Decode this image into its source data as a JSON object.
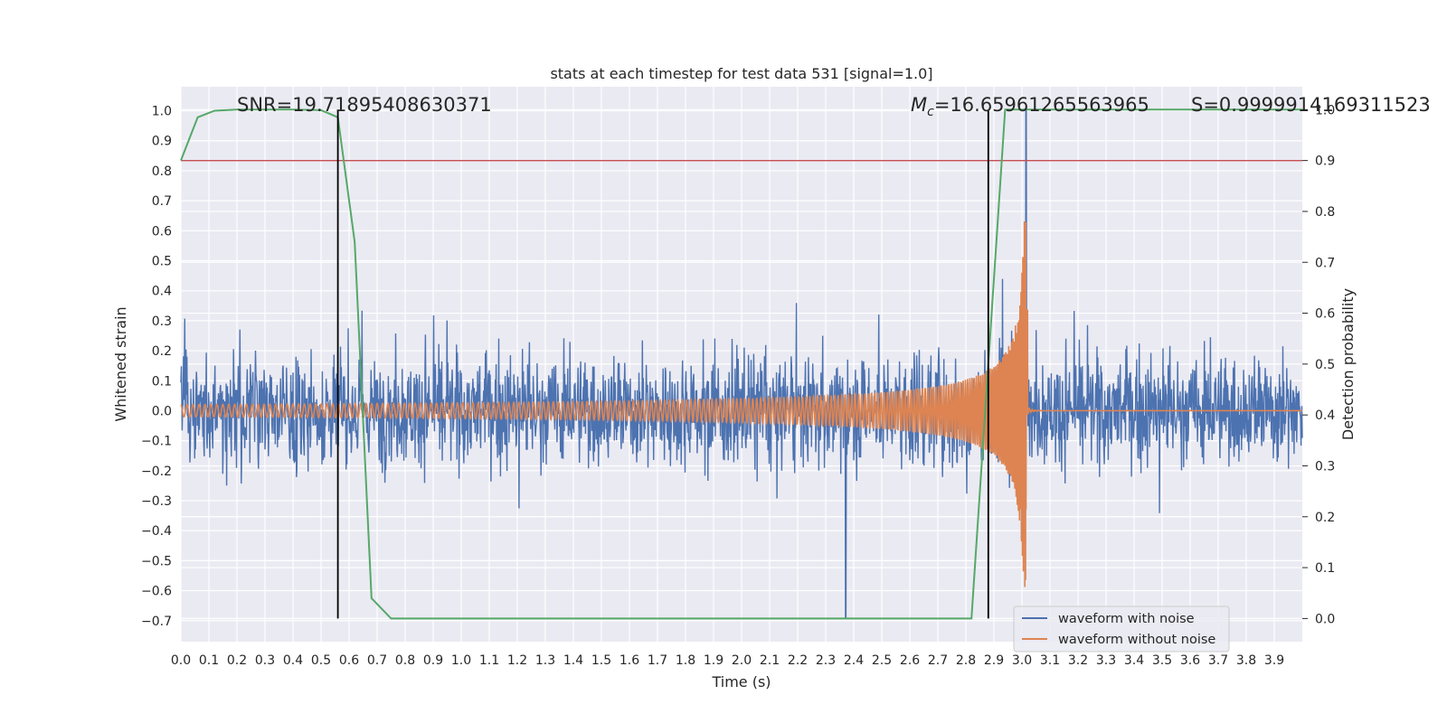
{
  "chart_data": {
    "type": "line",
    "title": "stats at each timestep for test data 531 [signal=1.0]",
    "xlabel": "Time (s)",
    "ylabel": "Whitened strain",
    "y2label": "Detection probability",
    "xlim": [
      0.0,
      4.0
    ],
    "ylim": [
      -0.77,
      1.08
    ],
    "y2lim": [
      -0.0455,
      1.045
    ],
    "x_ticks": [
      "0.0",
      "0.1",
      "0.2",
      "0.3",
      "0.4",
      "0.5",
      "0.6",
      "0.7",
      "0.8",
      "0.9",
      "1.0",
      "1.1",
      "1.2",
      "1.3",
      "1.4",
      "1.5",
      "1.6",
      "1.7",
      "1.8",
      "1.9",
      "2.0",
      "2.1",
      "2.2",
      "2.3",
      "2.4",
      "2.5",
      "2.6",
      "2.7",
      "2.8",
      "2.9",
      "3.0",
      "3.1",
      "3.2",
      "3.3",
      "3.4",
      "3.5",
      "3.6",
      "3.7",
      "3.8",
      "3.9"
    ],
    "y_ticks": [
      "−0.7",
      "−0.6",
      "−0.5",
      "−0.4",
      "−0.3",
      "−0.2",
      "−0.1",
      "0.0",
      "0.1",
      "0.2",
      "0.3",
      "0.4",
      "0.5",
      "0.6",
      "0.7",
      "0.8",
      "0.9",
      "1.0"
    ],
    "y2_ticks": [
      "0.0",
      "0.1",
      "0.2",
      "0.3",
      "0.4",
      "0.5",
      "0.6",
      "0.7",
      "0.8",
      "0.9",
      "1.0"
    ],
    "grid": true,
    "legend_position": "lower-right",
    "annotations": {
      "snr": "SNR=19.71895408630371",
      "mc_symbol": "M",
      "mc_sub": "c",
      "mc_value": "=16.65961265563965",
      "s_value": "S=0.9999914169311523"
    },
    "series": [
      {
        "name": "waveform with noise",
        "color": "#4c72b0",
        "axis": "left",
        "description": "broadband noise, spikes roughly between -0.69 and 1.0 (peak near t=3.02)"
      },
      {
        "name": "waveform without noise",
        "color": "#dd8452",
        "axis": "left",
        "description": "chirp: amplitude ~0.02 growing to ~0.66 at merger t~3.02, then flat near 0"
      },
      {
        "name": "detection probability",
        "color": "#55a868",
        "axis": "right",
        "x": [
          0.0,
          0.06,
          0.12,
          0.2,
          0.3,
          0.4,
          0.5,
          0.56,
          0.62,
          0.68,
          0.75,
          0.82,
          1.0,
          1.5,
          2.0,
          2.5,
          2.82,
          2.88,
          2.94,
          3.0,
          3.5,
          4.0
        ],
        "values": [
          0.9,
          0.985,
          0.998,
          1.0,
          1.0,
          1.0,
          0.999,
          0.985,
          0.74,
          0.04,
          0.0,
          0.0,
          0.0,
          0.0,
          0.0,
          0.0,
          0.0,
          0.5,
          1.0,
          1.0,
          1.0,
          1.0
        ]
      }
    ],
    "threshold": {
      "value": 0.9,
      "axis": "right",
      "color": "#c44e52"
    },
    "vertical_markers": [
      0.56,
      2.88
    ],
    "marker_color": "#000000"
  }
}
